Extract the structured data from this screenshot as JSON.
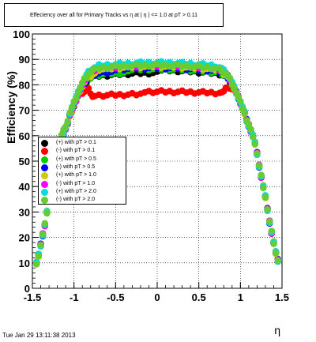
{
  "chart_data": {
    "type": "scatter",
    "title": "Effeciency over all for Primary Tracks vs   η at |  η | <= 1.0 at pT > 0.11",
    "xlabel": "η",
    "ylabel": "Efficiency (%)",
    "xlim": [
      -1.5,
      1.5
    ],
    "ylim": [
      0,
      100
    ],
    "x_ticks": [
      "-1.5",
      "-1",
      "-0.5",
      "0",
      "0.5",
      "1",
      "1.5"
    ],
    "y_ticks": [
      "0",
      "10",
      "20",
      "30",
      "40",
      "50",
      "60",
      "70",
      "80",
      "90",
      "100"
    ],
    "grid": true,
    "legend_position": "middle-left",
    "footer": "Tue Jan 29 13:11:38 2013",
    "series": [
      {
        "name": "(+) with pT > 0.1",
        "color": "#000000",
        "plateau": 84.5
      },
      {
        "name": "(-) with pT > 0.1",
        "color": "#ff0000",
        "plateau": 77.0
      },
      {
        "name": "(+) with pT > 0.5",
        "color": "#00cc00",
        "plateau": 85.0
      },
      {
        "name": "(-) with pT > 0.5",
        "color": "#0000ff",
        "plateau": 85.5
      },
      {
        "name": "(+) with pT > 1.0",
        "color": "#cccc00",
        "plateau": 86.0
      },
      {
        "name": "(-) with pT > 1.0",
        "color": "#ff00ff",
        "plateau": 86.5
      },
      {
        "name": "(+) with pT > 2.0",
        "color": "#00dddd",
        "plateau": 87.5
      },
      {
        "name": "(-) with pT > 2.0",
        "color": "#66cc33",
        "plateau": 86.5
      }
    ],
    "eta_points": [
      -1.45,
      -1.425,
      -1.4,
      -1.375,
      -1.35,
      -1.325,
      -1.3,
      -1.275,
      -1.25,
      -1.225,
      -1.2,
      -1.175,
      -1.15,
      -1.125,
      -1.1,
      -1.075,
      -1.05,
      -1.025,
      -1.0,
      -0.975,
      -0.95,
      -0.925,
      -0.9,
      -0.875,
      -0.85,
      -0.825,
      -0.8,
      -0.775,
      -0.75,
      -0.7,
      -0.65,
      -0.6,
      -0.55,
      -0.5,
      -0.45,
      -0.4,
      -0.35,
      -0.3,
      -0.25,
      -0.2,
      -0.15,
      -0.1,
      -0.05,
      0.0,
      0.05,
      0.1,
      0.15,
      0.2,
      0.25,
      0.3,
      0.35,
      0.4,
      0.45,
      0.5,
      0.55,
      0.6,
      0.65,
      0.7,
      0.75,
      0.775,
      0.8,
      0.825,
      0.85,
      0.875,
      0.9,
      0.925,
      0.95,
      0.975,
      1.0,
      1.025,
      1.05,
      1.075,
      1.1,
      1.125,
      1.15,
      1.175,
      1.2,
      1.225,
      1.25,
      1.275,
      1.3,
      1.325,
      1.35,
      1.375,
      1.4,
      1.425,
      1.45
    ],
    "shape": {
      "edge_eta": [
        1.45,
        1.425,
        1.4,
        1.375,
        1.35,
        1.325,
        1.3,
        1.275,
        1.25,
        1.225,
        1.2,
        1.175,
        1.15,
        1.125,
        1.1,
        1.075,
        1.05,
        1.025,
        1.0,
        0.975,
        0.95,
        0.925,
        0.9,
        0.875,
        0.85,
        0.825,
        0.8,
        0.775,
        0.75
      ],
      "edge_value": [
        11,
        14,
        18,
        22,
        26,
        31,
        36,
        40,
        44,
        48,
        53,
        57,
        60,
        62,
        64,
        66,
        69,
        71,
        73,
        75,
        77,
        78,
        79,
        80,
        81,
        82,
        82,
        83,
        83
      ]
    }
  }
}
